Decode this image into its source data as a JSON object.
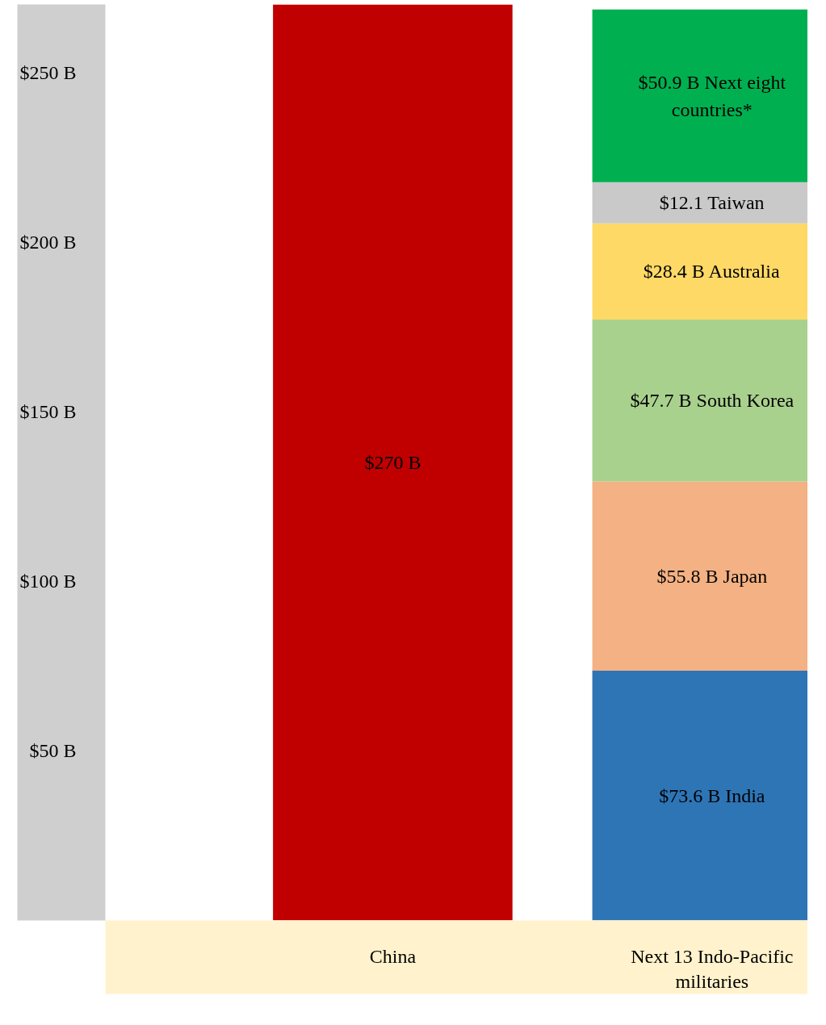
{
  "chart_data": {
    "type": "bar",
    "stacked": true,
    "categories": [
      "China",
      "Next 13 Indo-Pacific militaries"
    ],
    "series": [
      {
        "color": "#c00000",
        "values": [
          270,
          null
        ],
        "value_labels": [
          "$270 B",
          null
        ]
      },
      {
        "color": "#2e75b6",
        "values": [
          null,
          73.6
        ],
        "value_labels": [
          null,
          "$73.6 B India"
        ]
      },
      {
        "color": "#f4b183",
        "values": [
          null,
          55.8
        ],
        "value_labels": [
          null,
          "$55.8 B Japan"
        ]
      },
      {
        "color": "#a9d18e",
        "values": [
          null,
          47.7
        ],
        "value_labels": [
          null,
          "$47.7 B South Korea"
        ]
      },
      {
        "color": "#ffd966",
        "values": [
          null,
          28.4
        ],
        "value_labels": [
          null,
          "$28.4 B Australia"
        ]
      },
      {
        "color": "#c9c9c9",
        "values": [
          null,
          12.1
        ],
        "value_labels": [
          null,
          "$12.1 Taiwan"
        ]
      },
      {
        "color": "#00b050",
        "values": [
          null,
          50.9
        ],
        "value_labels": [
          null,
          "$50.9 B Next eight countries*"
        ]
      }
    ],
    "ylim": [
      0,
      270
    ],
    "yticks": [
      {
        "value": 50,
        "label": "$50 B"
      },
      {
        "value": 100,
        "label": "$100 B"
      },
      {
        "value": 150,
        "label": "$150 B"
      },
      {
        "value": 200,
        "label": "$200 B"
      },
      {
        "value": 250,
        "label": "$250 B"
      }
    ],
    "grid": false
  }
}
